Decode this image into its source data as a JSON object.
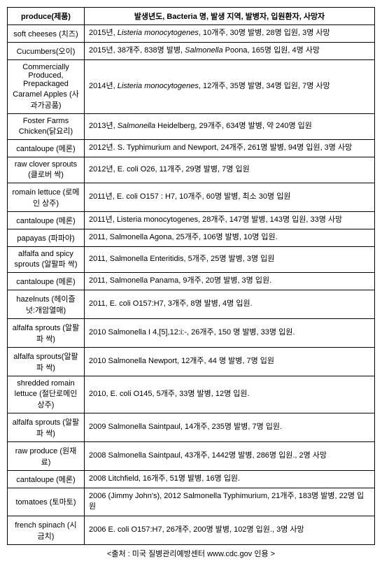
{
  "headers": {
    "produce": "produce(제품)",
    "details": "발생년도, Bacteria 명, 발생 지역, 발병자, 입원환자, 사망자"
  },
  "rows": [
    {
      "produce": "soft cheeses (치즈)",
      "details": "2015년, <i>Listeria monocytogenes</i>, 10개주, 30명 발병, 28명 입원, 3명 사망"
    },
    {
      "produce": "Cucumbers(오이)",
      "details": "2015년, 38개주, 838명 발병, <i>Salmonella</i> Poona, 165명 입원, 4명 사망"
    },
    {
      "produce": "Commercially Produced, Prepackaged Caramel Apples (사과가공품)",
      "details": "2014년, <i>Listeria monocytogenes</i>, 12개주, 35명 발명, 34명 입원, 7명 사망"
    },
    {
      "produce": "Foster Farms Chicken(닭요리)",
      "details": "2013년, <i>Salmonella</i> Heidelberg, 29개주, 634명 발병, 약 240명 입원"
    },
    {
      "produce": "cantaloupe (메론)",
      "details": "2012년. S. Typhimurium and Newport, 24개주, 261명 발병, 94명 입원, 3명 사망"
    },
    {
      "produce": "raw clover sprouts (클로버 싹)",
      "details": "2012년, E. coli O26, 11개주, 29명 발병, 7명 입원"
    },
    {
      "produce": "romain lettuce (로메인 상주)",
      "details": "2011년, E. coli O157 : H7, 10개주, 60명 발병, 최소 30명 입원"
    },
    {
      "produce": "cantaloupe (메론)",
      "details": "2011년, Listeria monocytogenes, 28개주, 147명 발병, 143명 입원, 33명 사망"
    },
    {
      "produce": "papayas (파파야)",
      "details": "2011, Salmonella Agona, 25개주, 106명 발병, 10명 입원."
    },
    {
      "produce": "alfalfa and spicy sprouts (알팔파 싹)",
      "details": "2011, Salmonella Enteritidis, 5개주, 25명 발병, 3명 입원"
    },
    {
      "produce": "cantaloupe (메론)",
      "details": "2011, Salmonella Panama, 9개주, 20명 발병, 3명 입원."
    },
    {
      "produce": "hazelnuts (헤이즐넛:개암열매)",
      "details": "2011, E. coli O157:H7, 3개주, 8명 발병, 4명 입원."
    },
    {
      "produce": "alfalfa sprouts (알팔파 싹)",
      "details": "2010 Salmonella I 4,[5],12:i:-, 26개주, 150 명 발병, 33명 입원."
    },
    {
      "produce": "alfalfa sprouts(알팔파 싹)",
      "details": "2010 Salmonella Newport, 12개주, 44 명 발병, 7명 입원"
    },
    {
      "produce": "shredded romain lettuce (절단로메인상주)",
      "details": "2010, E. coli O145, 5개주, 33명 발병, 12명 입원."
    },
    {
      "produce": "alfalfa sprouts (알팔파 싹)",
      "details": "2009 Salmonella Saintpaul, 14개주, 235명 발병, 7명 입원."
    },
    {
      "produce": "raw produce (원재료)",
      "details": "2008 Salmonella Saintpaul, 43개주, 1442명 발병, 286명 입원., 2명 사망"
    },
    {
      "produce": "cantaloupe (메론)",
      "details": "2008 Litchfield, 16개주, 51명 발병, 16명 입원."
    },
    {
      "produce": "tomatoes (토마토)",
      "details": "2006 (Jimmy John's), 2012 Salmonella Typhimurium, 21개주, 183명 발병, 22명 입원"
    },
    {
      "produce": "french spinach (시금치)",
      "details": "2006 E. coli O157:H7, 26개주, 200명 발병, 102명 입원., 3명 사망"
    }
  ],
  "source": "<출처 : 미국 질병관리예방센터 www.cdc.gov 인용 >"
}
